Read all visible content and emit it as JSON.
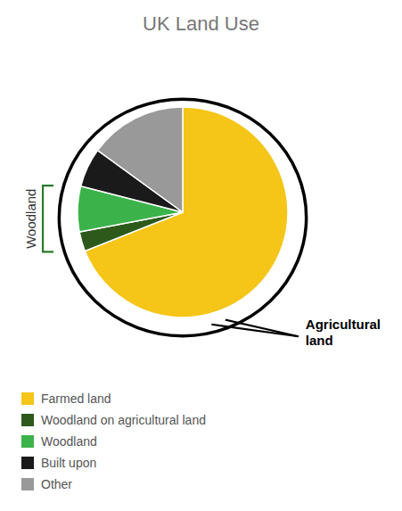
{
  "chart_data": {
    "type": "pie",
    "title": "UK Land Use",
    "categories": [
      "Farmed land",
      "Woodland on agricultural land",
      "Woodland",
      "Built upon",
      "Other"
    ],
    "values": [
      69,
      3,
      7,
      6,
      15
    ],
    "colors": [
      "#F5C518",
      "#2D5A1B",
      "#3CB34A",
      "#1A1A1A",
      "#999999"
    ],
    "annotations": [
      "Agricultural\nland",
      "Woodland"
    ],
    "legend": "lower left"
  }
}
